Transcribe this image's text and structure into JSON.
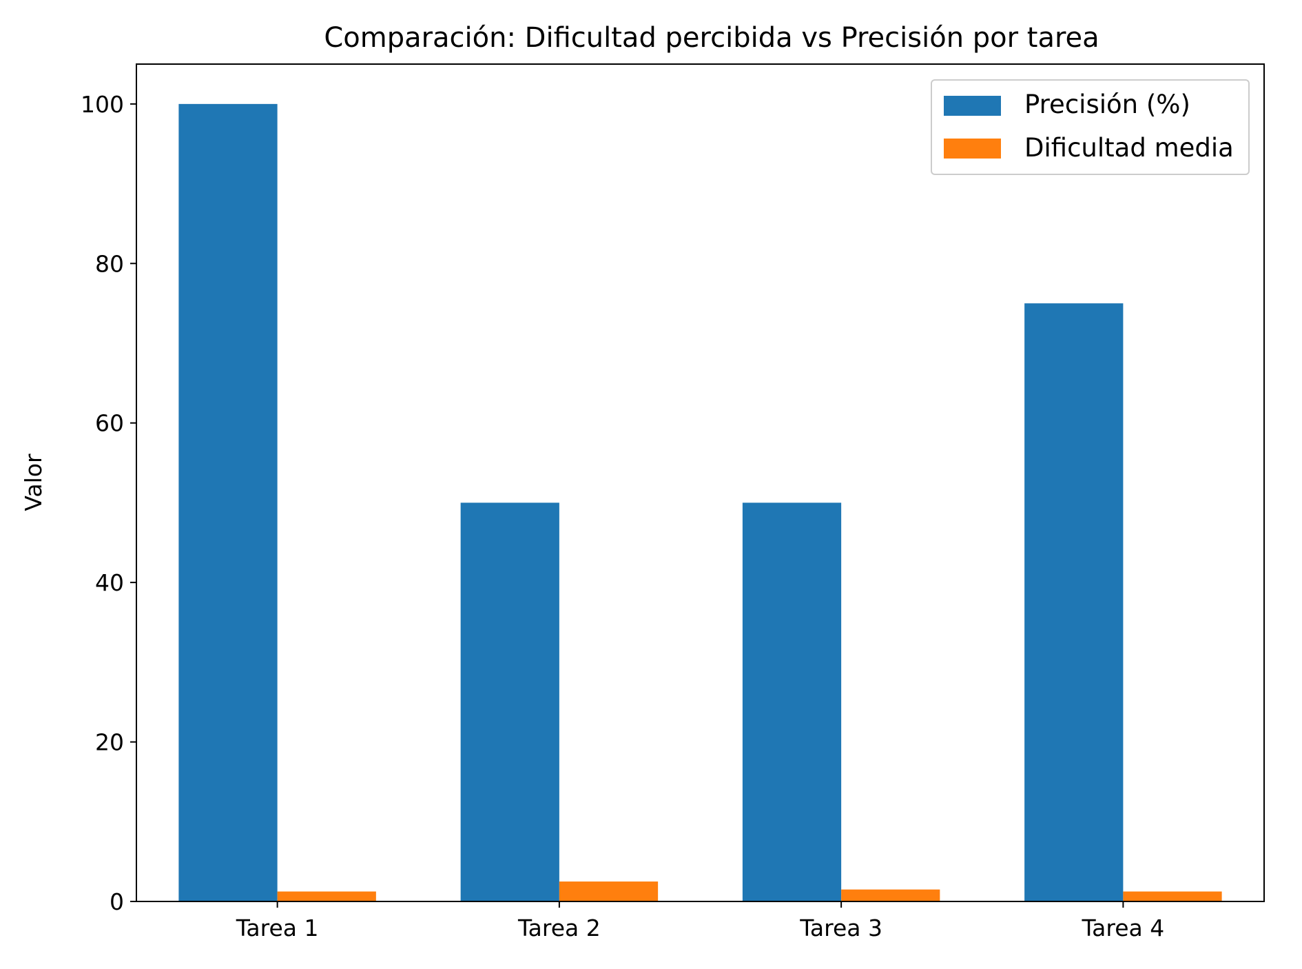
{
  "chart_data": {
    "type": "bar",
    "title": "Comparación: Dificultad percibida vs Precisión por tarea",
    "xlabel": "",
    "ylabel": "Valor",
    "categories": [
      "Tarea 1",
      "Tarea 2",
      "Tarea 3",
      "Tarea 4"
    ],
    "series": [
      {
        "name": "Precisión (%)",
        "values": [
          100,
          50,
          50,
          75
        ],
        "color": "#1f77b4"
      },
      {
        "name": "Dificultad media",
        "values": [
          1.25,
          2.5,
          1.5,
          1.25
        ],
        "color": "#ff7f0e"
      }
    ],
    "ylim": [
      0,
      105
    ],
    "yticks": [
      0,
      20,
      40,
      60,
      80,
      100
    ],
    "grid": false,
    "legend_position": "top-right"
  }
}
